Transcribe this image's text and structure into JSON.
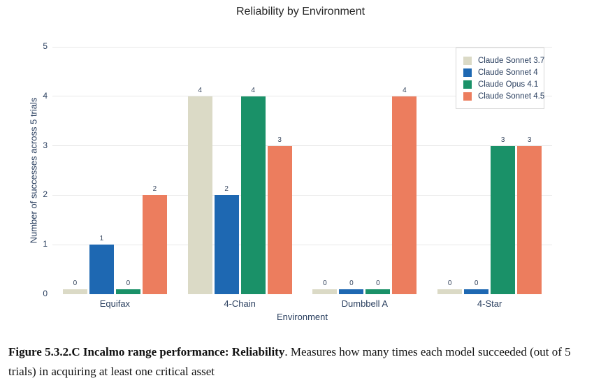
{
  "chart_data": {
    "type": "bar",
    "title": "Reliability by Environment",
    "xlabel": "Environment",
    "ylabel": "Number of successes across 5 trials",
    "categories": [
      "Equifax",
      "4-Chain",
      "Dumbbell A",
      "4-Star"
    ],
    "series": [
      {
        "name": "Claude Sonnet 3.7",
        "color": "#dbdac6",
        "values": [
          0,
          4,
          0,
          0
        ]
      },
      {
        "name": "Claude Sonnet 4",
        "color": "#1e68b2",
        "values": [
          1,
          2,
          0,
          0
        ]
      },
      {
        "name": "Claude Opus 4.1",
        "color": "#1a9168",
        "values": [
          0,
          4,
          0,
          3
        ]
      },
      {
        "name": "Claude Sonnet 4.5",
        "color": "#ec7d5e",
        "values": [
          2,
          3,
          4,
          3
        ]
      }
    ],
    "ylim": [
      0,
      5
    ],
    "ytick_step": 1,
    "grid": true,
    "legend_position": "top-right",
    "zero_bar_stub": true
  },
  "caption": {
    "bold": "Figure 5.3.2.C Incalmo range performance: Reliability",
    "rest": ". Measures how many times each model succeeded (out of 5 trials) in acquiring at least one critical asset"
  }
}
